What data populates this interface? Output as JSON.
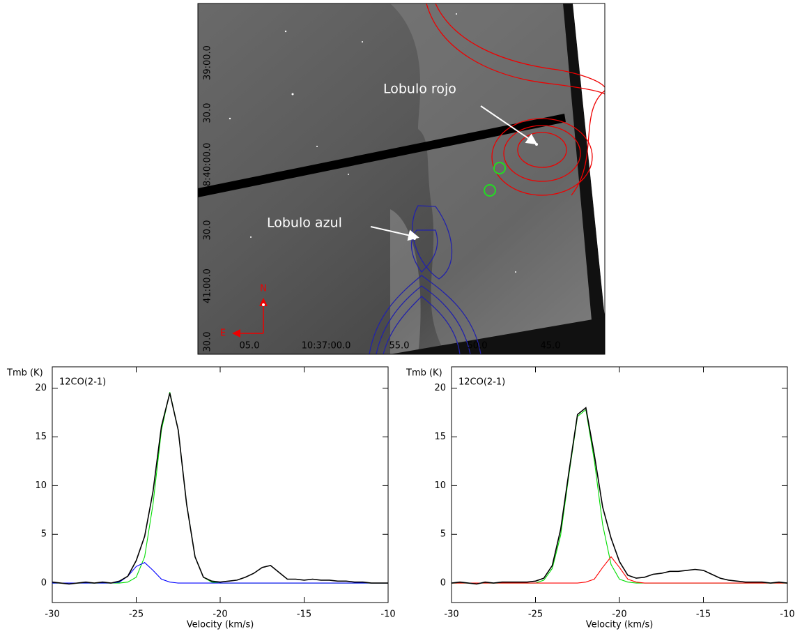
{
  "image": {
    "y_tick_labels": [
      "39:00.0",
      "30.0",
      "58:40:00.0",
      "30.0",
      "41:00.0",
      "30.0"
    ],
    "x_tick_labels": [
      "05.0",
      "10:37:00.0",
      "55.0",
      "50.0",
      "45.0"
    ],
    "annotations": [
      "Lobulo rojo",
      "Lobulo azul"
    ],
    "compass": [
      "N",
      "E"
    ]
  },
  "chart_data": [
    {
      "type": "line",
      "annotation": "12CO(2-1)",
      "y_label": "Tmb (K)",
      "x_label": "Velocity (km/s)",
      "x": [
        -30,
        -29.5,
        -29,
        -28.5,
        -28,
        -27.5,
        -27,
        -26.5,
        -26,
        -25.5,
        -25,
        -24.5,
        -24,
        -23.5,
        -23,
        -22.5,
        -22,
        -21.5,
        -21,
        -20.5,
        -20,
        -19.5,
        -19,
        -18.5,
        -18,
        -17.5,
        -17,
        -16.5,
        -16,
        -15.5,
        -15,
        -14.5,
        -14,
        -13.5,
        -13,
        -12.5,
        -12,
        -11.5,
        -11,
        -10.5,
        -10
      ],
      "series": [
        {
          "color": "#00dd00",
          "values": [
            0,
            0,
            0,
            0,
            0,
            0,
            0,
            0,
            0,
            0.1,
            0.6,
            2.7,
            8.1,
            15.7,
            19.6,
            15.7,
            8.1,
            2.7,
            0.6,
            0.1,
            0,
            0,
            0,
            0,
            0,
            0,
            0,
            0,
            0,
            0,
            0,
            0,
            0,
            0,
            0,
            0,
            0,
            0,
            0,
            0,
            0
          ]
        },
        {
          "color": "#0000ff",
          "values": [
            0,
            0,
            0,
            0,
            0,
            0,
            0,
            0,
            0.1,
            0.7,
            1.7,
            2.1,
            1.3,
            0.4,
            0.1,
            0,
            0,
            0,
            0,
            0,
            0,
            0,
            0,
            0,
            0,
            0,
            0,
            0,
            0,
            0,
            0,
            0,
            0,
            0,
            0,
            0,
            0,
            0,
            0,
            0,
            0
          ]
        },
        {
          "color": "#000000",
          "values": [
            0.1,
            0,
            -0.1,
            0,
            0.1,
            0,
            0.1,
            0,
            0.2,
            0.7,
            2.3,
            4.8,
            9.4,
            16.1,
            19.5,
            15.7,
            8.1,
            2.7,
            0.6,
            0.2,
            0.1,
            0.2,
            0.3,
            0.6,
            1.0,
            1.6,
            1.8,
            1.1,
            0.4,
            0.4,
            0.3,
            0.4,
            0.3,
            0.3,
            0.2,
            0.2,
            0.1,
            0.1,
            0,
            0,
            0
          ]
        }
      ],
      "xlim": [
        -30,
        -10
      ],
      "xticks": [
        -30,
        -25,
        -20,
        -15,
        -10
      ],
      "ylim": [
        -2,
        22.2
      ],
      "yticks": [
        0,
        5,
        10,
        15,
        20
      ]
    },
    {
      "type": "line",
      "annotation": "12CO(2-1)",
      "y_label": "Tmb (K)",
      "x_label": "Velocity (km/s)",
      "x": [
        -30,
        -29.5,
        -29,
        -28.5,
        -28,
        -27.5,
        -27,
        -26.5,
        -26,
        -25.5,
        -25,
        -24.5,
        -24,
        -23.5,
        -23,
        -22.5,
        -22,
        -21.5,
        -21,
        -20.5,
        -20,
        -19.5,
        -19,
        -18.5,
        -18,
        -17.5,
        -17,
        -16.5,
        -16,
        -15.5,
        -15,
        -14.5,
        -14,
        -13.5,
        -13,
        -12.5,
        -12,
        -11.5,
        -11,
        -10.5,
        -10
      ],
      "series": [
        {
          "color": "#00dd00",
          "values": [
            0,
            0,
            0,
            0,
            0,
            0,
            0,
            0,
            0,
            0,
            0,
            0.3,
            1.5,
            4.9,
            11.2,
            17.1,
            17.8,
            12.6,
            6.0,
            1.9,
            0.4,
            0.1,
            0,
            0,
            0,
            0,
            0,
            0,
            0,
            0,
            0,
            0,
            0,
            0,
            0,
            0,
            0,
            0,
            0,
            0,
            0
          ]
        },
        {
          "color": "#ff0000",
          "values": [
            0,
            0,
            0,
            0,
            0,
            0,
            0,
            0,
            0,
            0,
            0,
            0,
            0,
            0,
            0,
            0,
            0.1,
            0.4,
            1.6,
            2.7,
            1.6,
            0.4,
            0.1,
            0,
            0,
            0,
            0,
            0,
            0,
            0,
            0,
            0,
            0,
            0,
            0,
            0,
            0,
            0,
            0,
            0,
            0
          ]
        },
        {
          "color": "#000000",
          "values": [
            0,
            0.1,
            0,
            -0.1,
            0.1,
            0,
            0.1,
            0.1,
            0.1,
            0.1,
            0.2,
            0.5,
            1.8,
            5.5,
            11.5,
            17.3,
            18.0,
            13.2,
            7.8,
            4.6,
            2.2,
            0.8,
            0.5,
            0.6,
            0.9,
            1.0,
            1.2,
            1.2,
            1.3,
            1.4,
            1.3,
            0.9,
            0.5,
            0.3,
            0.2,
            0.1,
            0.1,
            0.1,
            0,
            0.1,
            0
          ]
        }
      ],
      "xlim": [
        -30,
        -10
      ],
      "xticks": [
        -30,
        -25,
        -20,
        -15,
        -10
      ],
      "ylim": [
        -2,
        22.2
      ],
      "yticks": [
        0,
        5,
        10,
        15,
        20
      ]
    }
  ]
}
